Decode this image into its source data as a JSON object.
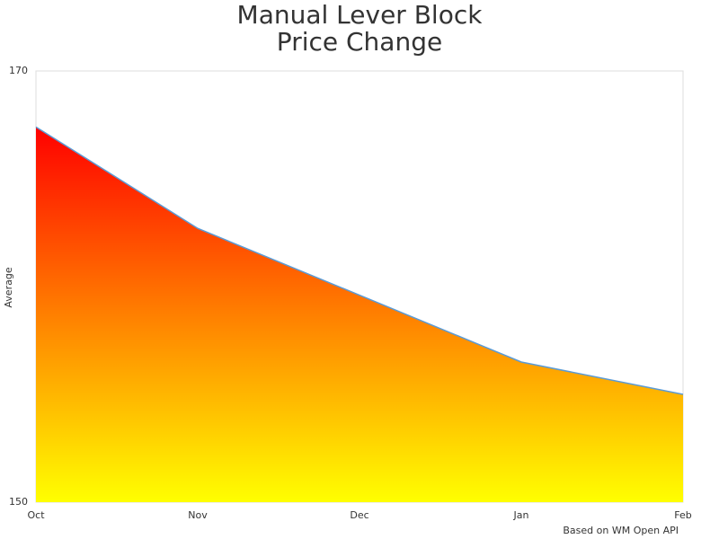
{
  "chart_data": {
    "type": "area",
    "title": [
      "Manual Lever Block",
      "Price Change"
    ],
    "y_label": "Average",
    "credit": "Based on WM Open API",
    "categories": [
      "Oct",
      "Nov",
      "Dec",
      "Jan",
      "Feb"
    ],
    "values": [
      167.4,
      162.7,
      159.6,
      156.5,
      155.0
    ],
    "color": "#5b9bd5",
    "fill_gradient": [
      "#ff0000",
      "#ffff00"
    ],
    "ylim": [
      150,
      170
    ],
    "yticks": [
      150,
      170
    ],
    "grid": false
  }
}
